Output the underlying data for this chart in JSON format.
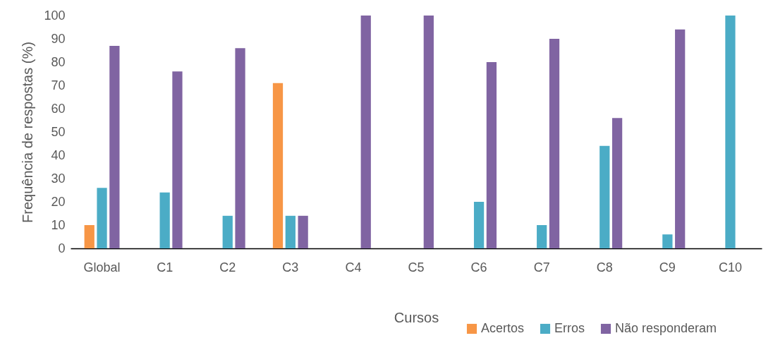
{
  "chart_data": {
    "type": "bar",
    "xlabel": "Cursos",
    "ylabel": "Frequência de respostas (%)",
    "categories": [
      "Global",
      "C1",
      "C2",
      "C3",
      "C4",
      "C5",
      "C6",
      "C7",
      "C8",
      "C9",
      "C10"
    ],
    "series": [
      {
        "name": "Acertos",
        "color": "#f79646",
        "values": [
          10,
          0,
          0,
          71,
          0,
          0,
          0,
          0,
          0,
          0,
          0
        ]
      },
      {
        "name": "Erros",
        "color": "#4bacc6",
        "values": [
          26,
          24,
          14,
          14,
          0,
          0,
          20,
          10,
          44,
          6,
          100
        ]
      },
      {
        "name": "Não responderam",
        "color": "#8064a2",
        "values": [
          87,
          76,
          86,
          14,
          100,
          100,
          80,
          90,
          56,
          94,
          0
        ]
      }
    ],
    "ylim": [
      0,
      100
    ],
    "yticks": [
      0,
      10,
      20,
      30,
      40,
      50,
      60,
      70,
      80,
      90,
      100
    ],
    "grid": false,
    "legend": "bottom right"
  }
}
